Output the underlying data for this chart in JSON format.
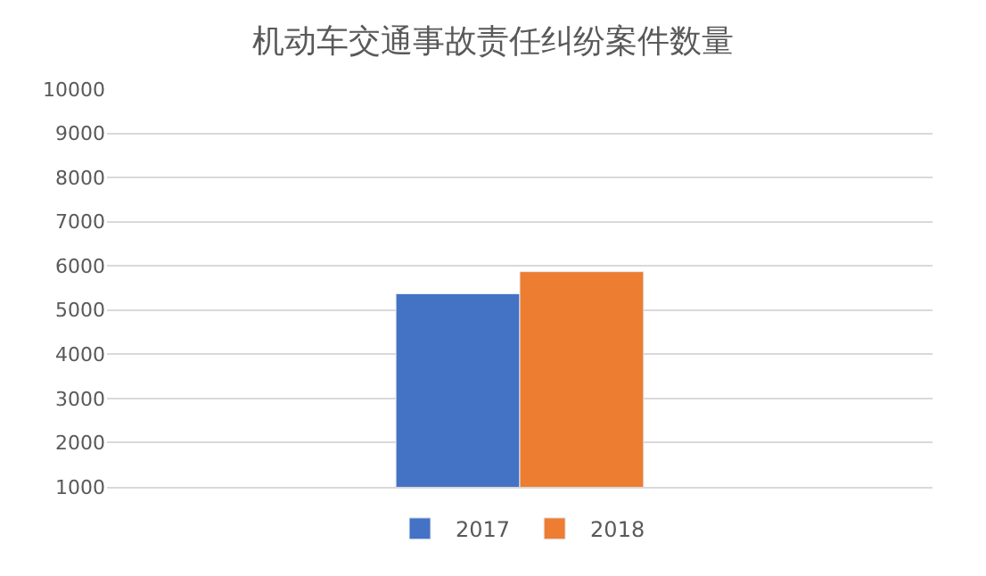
{
  "chart_data": {
    "type": "bar",
    "title": "机动车交通事故责任纠纷案件数量",
    "categories": [
      null
    ],
    "series": [
      {
        "name": "2017",
        "color": "#4472c4",
        "values": [
          5370
        ]
      },
      {
        "name": "2018",
        "color": "#ed7d31",
        "values": [
          5870
        ]
      }
    ],
    "ylim": [
      1000,
      10000
    ],
    "yticks": [
      1000,
      2000,
      3000,
      4000,
      5000,
      6000,
      7000,
      8000,
      9000,
      10000
    ],
    "grid": "y",
    "legend": "bottom"
  }
}
